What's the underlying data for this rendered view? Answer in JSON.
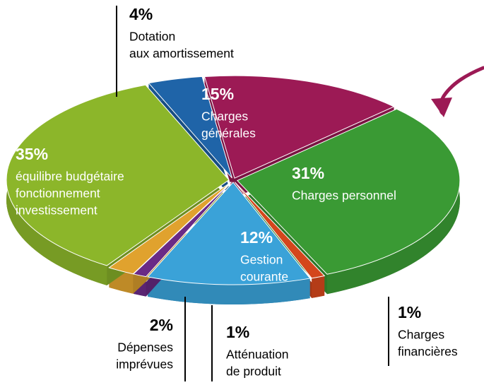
{
  "chart_data": {
    "type": "pie",
    "categories": [
      [
        "Dotation",
        "aux amortissement"
      ],
      [
        "Charges",
        "générales"
      ],
      [
        "Charges personnel"
      ],
      [
        "Charges",
        "financières"
      ],
      [
        "Gestion",
        "courante"
      ],
      [
        "Atténuation",
        "de produit"
      ],
      [
        "Dépenses",
        "imprévues"
      ],
      [
        "équilibre budgétaire",
        "fonctionnement",
        "investissement"
      ]
    ],
    "values": [
      4,
      15,
      31,
      1,
      12,
      1,
      2,
      35
    ],
    "value_labels": [
      "4%",
      "15%",
      "31%",
      "1%",
      "12%",
      "1%",
      "2%",
      "35%"
    ],
    "colors": [
      "#1f64a8",
      "#9c1a55",
      "#3a9a34",
      "#d4461c",
      "#3aa2d8",
      "#6a2a86",
      "#e0a22e",
      "#8cb62a"
    ]
  }
}
